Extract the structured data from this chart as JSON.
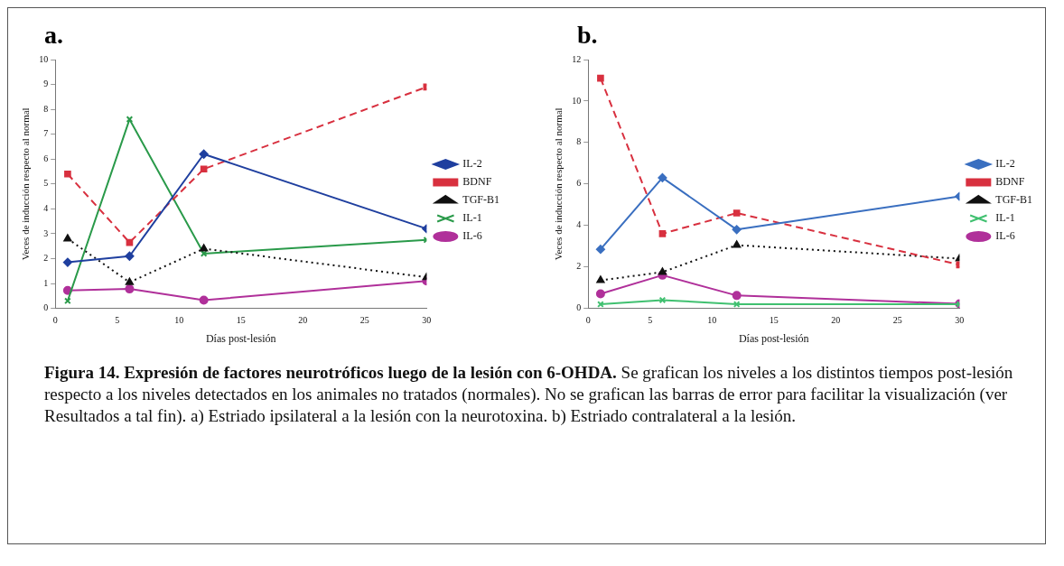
{
  "chart_data": [
    {
      "type": "line",
      "title": "a.",
      "xlabel": "Días post-lesión",
      "ylabel": "Veces de inducción respecto al normal",
      "x": [
        1,
        6,
        12,
        30
      ],
      "xlim": [
        0,
        30
      ],
      "xticks": [
        0,
        5,
        10,
        15,
        20,
        25,
        30
      ],
      "ylim": [
        0,
        10
      ],
      "yticks": [
        0,
        1,
        2,
        3,
        4,
        5,
        6,
        7,
        8,
        9,
        10
      ],
      "legend": "right",
      "grid": false,
      "series": [
        {
          "name": "IL-2",
          "color": "#1f3f9f",
          "marker": "diamond",
          "line_style": "solid",
          "values": [
            1.85,
            2.1,
            6.2,
            3.2
          ]
        },
        {
          "name": "BDNF",
          "color": "#d8303f",
          "marker": "square",
          "line_style": "dashed",
          "values": [
            5.4,
            2.65,
            5.6,
            8.9
          ]
        },
        {
          "name": "TGF-B1",
          "color": "#111111",
          "marker": "triangle",
          "line_style": "dotted",
          "values": [
            2.8,
            1.05,
            2.4,
            1.25
          ]
        },
        {
          "name": "IL-1",
          "color": "#2a9a4a",
          "marker": "cross",
          "line_style": "solid",
          "values": [
            0.3,
            7.6,
            2.2,
            2.75
          ]
        },
        {
          "name": "IL-6",
          "color": "#b0309a",
          "marker": "circle",
          "line_style": "solid",
          "values": [
            0.72,
            0.78,
            0.33,
            1.1
          ]
        }
      ]
    },
    {
      "type": "line",
      "title": "b.",
      "xlabel": "Días post-lesión",
      "ylabel": "Veces de inducción respecto al normal",
      "x": [
        1,
        6,
        12,
        30
      ],
      "xlim": [
        0,
        30
      ],
      "xticks": [
        0,
        5,
        10,
        15,
        20,
        25,
        30
      ],
      "ylim": [
        0,
        12
      ],
      "yticks": [
        0,
        2,
        4,
        6,
        8,
        10,
        12
      ],
      "legend": "right",
      "grid": false,
      "series": [
        {
          "name": "IL-2",
          "color": "#3a6fc0",
          "marker": "diamond",
          "line_style": "solid",
          "values": [
            2.85,
            6.3,
            3.8,
            5.4
          ]
        },
        {
          "name": "BDNF",
          "color": "#d8303f",
          "marker": "square",
          "line_style": "dashed",
          "values": [
            11.1,
            3.6,
            4.6,
            2.1
          ]
        },
        {
          "name": "TGF-B1",
          "color": "#111111",
          "marker": "triangle",
          "line_style": "dotted",
          "values": [
            1.35,
            1.75,
            3.05,
            2.4
          ]
        },
        {
          "name": "IL-1",
          "color": "#40c070",
          "marker": "cross",
          "line_style": "solid",
          "values": [
            0.2,
            0.4,
            0.2,
            0.2
          ]
        },
        {
          "name": "IL-6",
          "color": "#b0309a",
          "marker": "circle",
          "line_style": "solid",
          "values": [
            0.7,
            1.6,
            0.62,
            0.22
          ]
        }
      ],
      "annotations": [
        "Figura 14. Expresión de factores neurotróficos luego de la lesión con 6-OHDA.",
        "Se grafican los niveles a los distintos tiempos post-lesión respecto a los niveles detectados en los animales no tratados (normales). No se grafican las barras de error para facilitar la visualización (ver Resultados a tal fin).",
        "a) Estriado ipsilateral a la lesión con la neurotoxina.",
        "b) Estriado contralateral a la lesión."
      ]
    }
  ]
}
